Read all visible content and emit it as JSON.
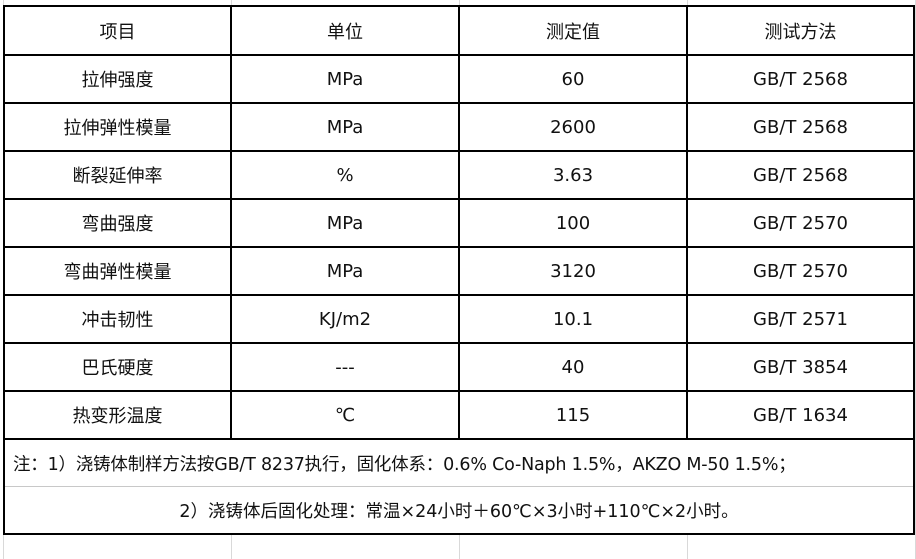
{
  "headers": [
    "项目",
    "单位",
    "测定值",
    "测试方法"
  ],
  "rows": [
    [
      "拉伸强度",
      "MPa",
      "60",
      "GB/T 2568"
    ],
    [
      "拉伸弹性模量",
      "MPa",
      "2600",
      "GB/T 2568"
    ],
    [
      "断裂延伸率",
      "%",
      "3.63",
      "GB/T 2568"
    ],
    [
      "弯曲强度",
      "MPa",
      "100",
      "GB/T 2570"
    ],
    [
      "弯曲弹性模量",
      "MPa",
      "3120",
      "GB/T 2570"
    ],
    [
      "冲击韧性",
      "KJ/m2",
      "10.1",
      "GB/T 2571"
    ],
    [
      "巴氏硬度",
      "---",
      "40",
      "GB/T 3854"
    ],
    [
      "热变形温度",
      "℃",
      "115",
      "GB/T 1634"
    ]
  ],
  "notes": [
    "注：1）浇铸体制样方法按GB/T 8237执行，固化体系：0.6% Co-Naph 1.5%，AKZO M-50 1.5%；",
    "2）浇铸体后固化处理：常温×24小时＋60℃×3小时+110℃×2小时。"
  ]
}
